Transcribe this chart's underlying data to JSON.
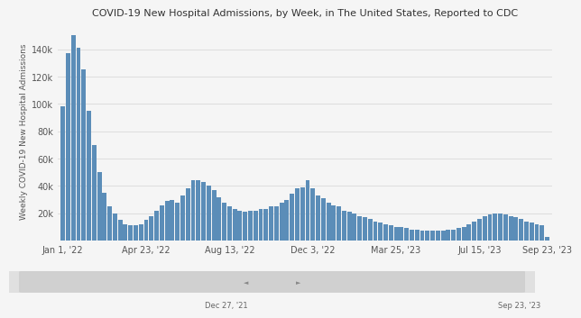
{
  "title": "COVID-19 New Hospital Admissions, by Week, in The United States, Reported to CDC",
  "ylabel": "Weekly COVID-19 New Hospital Admissions",
  "bar_color": "#5b8db8",
  "background_color": "#f5f5f5",
  "plot_background": "#f5f5f5",
  "grid_color": "#dddddd",
  "xlabel_ticks": [
    "Jan 1, '22",
    "Apr 23, '22",
    "Aug 13, '22",
    "Dec 3, '22",
    "Mar 25, '23",
    "Jul 15, '23",
    "Sep 23, '23"
  ],
  "xlabel_tick_positions": [
    0,
    16,
    32,
    48,
    64,
    80,
    93
  ],
  "scrollbar_labels": [
    "Dec 27, '21",
    "Sep 23, '23"
  ],
  "ylim": [
    0,
    160000
  ],
  "yticks": [
    20000,
    40000,
    60000,
    80000,
    100000,
    120000,
    140000
  ],
  "values": [
    98000,
    137000,
    150000,
    141000,
    125000,
    95000,
    70000,
    50000,
    35000,
    25000,
    20000,
    15000,
    12000,
    11000,
    11000,
    12000,
    15000,
    18000,
    22000,
    26000,
    29000,
    30000,
    28000,
    33000,
    38000,
    44000,
    44000,
    43000,
    40000,
    37000,
    32000,
    28000,
    25000,
    23000,
    22000,
    21000,
    22000,
    22000,
    23000,
    23000,
    25000,
    25000,
    28000,
    30000,
    34000,
    38000,
    39000,
    44000,
    38000,
    33000,
    31000,
    28000,
    26000,
    25000,
    22000,
    21000,
    20000,
    18000,
    17000,
    16000,
    14000,
    13000,
    12000,
    11000,
    10000,
    10000,
    9000,
    8000,
    8000,
    7000,
    7000,
    7000,
    7000,
    7000,
    8000,
    8000,
    9000,
    10000,
    12000,
    14000,
    16000,
    18000,
    19000,
    20000,
    20000,
    19000,
    18000,
    17000,
    16000,
    14000,
    13000,
    12000,
    11000,
    3000
  ]
}
